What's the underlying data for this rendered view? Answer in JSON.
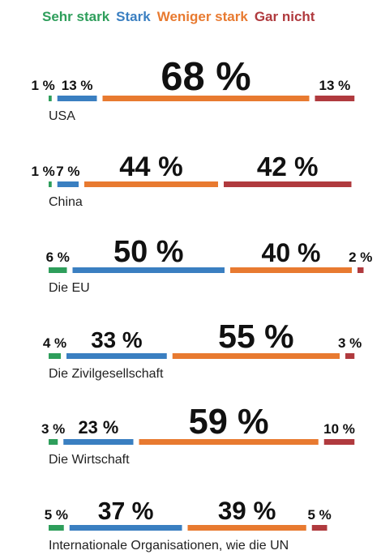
{
  "chart_data": {
    "type": "stacked_bar",
    "categories": [
      "USA",
      "China",
      "Die EU",
      "Die Zivilgesellschaft",
      "Die Wirtschaft",
      "Internationale Organisationen, wie die UN"
    ],
    "series": [
      {
        "name": "Sehr stark",
        "color": "#2e9e5b",
        "values": [
          1,
          1,
          6,
          4,
          3,
          5
        ],
        "value_labels": [
          "1 %",
          "1 %",
          "6 %",
          "4 %",
          "3 %",
          "5 %"
        ]
      },
      {
        "name": "Stark",
        "color": "#3a7fc1",
        "values": [
          13,
          7,
          50,
          33,
          23,
          37
        ],
        "value_labels": [
          "13 %",
          "7 %",
          "50 %",
          "33 %",
          "23 %",
          "37 %"
        ]
      },
      {
        "name": "Weniger stark",
        "color": "#e87a30",
        "values": [
          68,
          44,
          40,
          55,
          59,
          39
        ],
        "value_labels": [
          "68 %",
          "44 %",
          "40 %",
          "55 %",
          "59 %",
          "39 %"
        ]
      },
      {
        "name": "Gar nicht",
        "color": "#b03a3e",
        "values": [
          13,
          42,
          2,
          3,
          10,
          5
        ],
        "value_labels": [
          "13 %",
          "42 %",
          "2 %",
          "3 %",
          "10 %",
          "5 %"
        ]
      }
    ]
  }
}
